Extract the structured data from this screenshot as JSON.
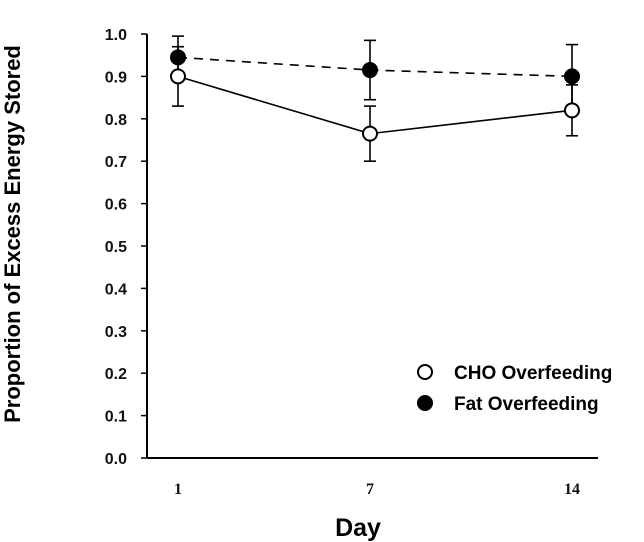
{
  "chart_data": {
    "type": "line",
    "xlabel": "Day",
    "ylabel": "Proportion of Excess Energy Stored",
    "categories": [
      "1",
      "7",
      "14"
    ],
    "x": [
      1,
      7,
      14
    ],
    "ylim": [
      0.0,
      1.0
    ],
    "yticks": [
      "0.0",
      "0.1",
      "0.2",
      "0.3",
      "0.4",
      "0.5",
      "0.6",
      "0.7",
      "0.8",
      "0.9",
      "1.0"
    ],
    "grid": false,
    "legend_position": "bottom-right",
    "series": [
      {
        "name": "CHO Overfeeding",
        "marker": "open-circle",
        "line_style": "solid",
        "values": [
          0.9,
          0.765,
          0.82
        ],
        "error": [
          0.07,
          0.065,
          0.06
        ]
      },
      {
        "name": "Fat Overfeeding",
        "marker": "filled-circle",
        "line_style": "dashed",
        "values": [
          0.945,
          0.915,
          0.9
        ],
        "error": [
          0.05,
          0.07,
          0.075
        ]
      }
    ]
  }
}
